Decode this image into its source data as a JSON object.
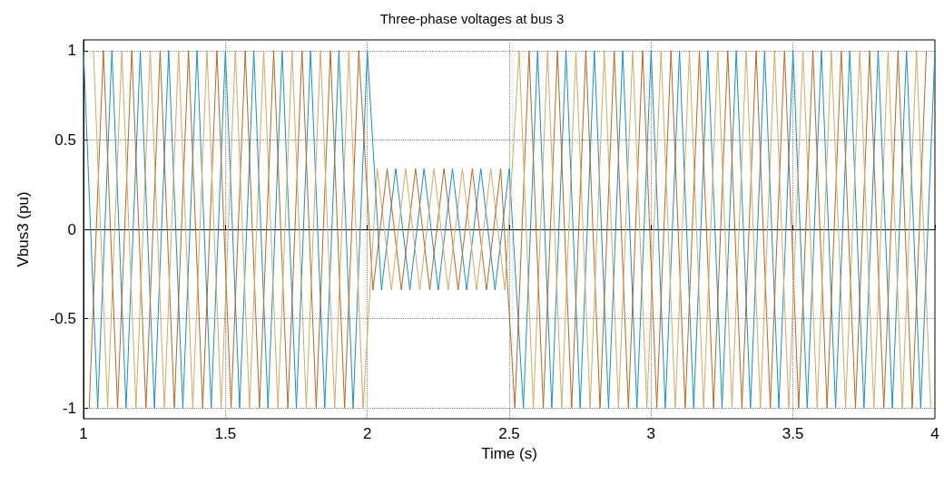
{
  "chart_data": {
    "type": "line",
    "title": "Three-phase voltages at bus 3",
    "xlabel": "Time (s)",
    "ylabel": "Vbus3 (pu)",
    "xlim": [
      1,
      4
    ],
    "xticks": [
      1,
      1.5,
      2,
      2.5,
      3,
      3.5,
      4
    ],
    "ylim": [
      -1.06,
      1.06
    ],
    "yticks": [
      -1,
      -0.5,
      0,
      0.5,
      1
    ],
    "grid": true,
    "series": [
      {
        "color": "#1590c4",
        "x": [
          1,
          1.05,
          1.1,
          1.15,
          1.2,
          1.25,
          1.3,
          1.35,
          1.4,
          1.45,
          1.5,
          1.55,
          1.6,
          1.65,
          1.7,
          1.75,
          1.8,
          1.85,
          1.9,
          1.95,
          2,
          2.05,
          2.1,
          2.15,
          2.2,
          2.25,
          2.3,
          2.35,
          2.4,
          2.45,
          2.5,
          2.55,
          2.6,
          2.65,
          2.7,
          2.75,
          2.8,
          2.85,
          2.9,
          2.95,
          3,
          3.05,
          3.1,
          3.15,
          3.2,
          3.25,
          3.3,
          3.35,
          3.4,
          3.45,
          3.5,
          3.55,
          3.6,
          3.65,
          3.7,
          3.75,
          3.8,
          3.85,
          3.9,
          3.95,
          4
        ],
        "values": [
          1,
          -1,
          1,
          -1,
          1,
          -1,
          1,
          -1,
          1,
          -1,
          1,
          -1,
          1,
          -1,
          1,
          -1,
          1,
          -1,
          1,
          -1,
          1,
          -0.34,
          0.34,
          -0.34,
          0.34,
          -0.34,
          0.34,
          -0.34,
          0.34,
          -0.34,
          0.34,
          -1,
          1,
          -1,
          1,
          -1,
          1,
          -1,
          1,
          -1,
          1,
          -1,
          1,
          -1,
          1,
          -1,
          1,
          -1,
          1,
          -1,
          1,
          -1,
          1,
          -1,
          1,
          -1,
          1,
          -1,
          1,
          -1,
          1
        ]
      },
      {
        "color": "#b8661e",
        "x": [
          1.02,
          1.07,
          1.12,
          1.17,
          1.22,
          1.27,
          1.32,
          1.37,
          1.42,
          1.47,
          1.52,
          1.57,
          1.62,
          1.67,
          1.72,
          1.77,
          1.82,
          1.87,
          1.92,
          1.97,
          2.02,
          2.07,
          2.12,
          2.17,
          2.22,
          2.27,
          2.32,
          2.37,
          2.42,
          2.47,
          2.52,
          2.57,
          2.62,
          2.67,
          2.72,
          2.77,
          2.82,
          2.87,
          2.92,
          2.97,
          3.02,
          3.07,
          3.12,
          3.17,
          3.22,
          3.27,
          3.32,
          3.37,
          3.42,
          3.47,
          3.52,
          3.57,
          3.62,
          3.67,
          3.72,
          3.77,
          3.82,
          3.87,
          3.92,
          3.97
        ],
        "values": [
          -1,
          1,
          -1,
          1,
          -1,
          1,
          -1,
          1,
          -1,
          1,
          -1,
          1,
          -1,
          1,
          -1,
          1,
          -1,
          1,
          -1,
          1,
          -0.34,
          0.34,
          -0.34,
          0.34,
          -0.34,
          0.34,
          -0.34,
          0.34,
          -0.34,
          0.34,
          -1,
          1,
          -1,
          1,
          -1,
          1,
          -1,
          1,
          -1,
          1,
          -1,
          1,
          -1,
          1,
          -1,
          1,
          -1,
          1,
          -1,
          1,
          -1,
          1,
          -1,
          1,
          -1,
          1,
          -1,
          1,
          -1,
          1
        ]
      },
      {
        "color": "#d4a860",
        "x": [
          1.035,
          1.085,
          1.135,
          1.185,
          1.235,
          1.285,
          1.335,
          1.385,
          1.435,
          1.485,
          1.535,
          1.585,
          1.635,
          1.685,
          1.735,
          1.785,
          1.835,
          1.885,
          1.935,
          1.985,
          2.035,
          2.085,
          2.135,
          2.185,
          2.235,
          2.285,
          2.335,
          2.385,
          2.435,
          2.485,
          2.535,
          2.585,
          2.635,
          2.685,
          2.735,
          2.785,
          2.835,
          2.885,
          2.935,
          2.985,
          3.035,
          3.085,
          3.135,
          3.185,
          3.235,
          3.285,
          3.335,
          3.385,
          3.435,
          3.485,
          3.535,
          3.585,
          3.635,
          3.685,
          3.735,
          3.785,
          3.835,
          3.885,
          3.935,
          3.985
        ],
        "values": [
          1,
          -1,
          1,
          -1,
          1,
          -1,
          1,
          -1,
          1,
          -1,
          1,
          -1,
          1,
          -1,
          1,
          -1,
          1,
          -1,
          1,
          -1,
          0.34,
          -0.34,
          0.34,
          -0.34,
          0.34,
          -0.34,
          0.34,
          -0.34,
          0.34,
          -0.34,
          1,
          -1,
          1,
          -1,
          1,
          -1,
          1,
          -1,
          1,
          -1,
          1,
          -1,
          1,
          -1,
          1,
          -1,
          1,
          -1,
          1,
          -1,
          1,
          -1,
          1,
          -1,
          1,
          -1,
          1,
          -1,
          1,
          -1
        ]
      }
    ]
  }
}
